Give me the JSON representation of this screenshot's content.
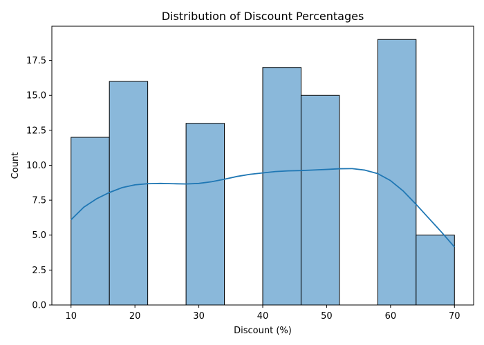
{
  "chart_data": {
    "type": "bar",
    "title": "Distribution of Discount Percentages",
    "xlabel": "Discount (%)",
    "ylabel": "Count",
    "xlim": [
      7.0,
      73.0
    ],
    "ylim": [
      0,
      19.95
    ],
    "xticks": [
      10,
      20,
      30,
      40,
      50,
      60,
      70
    ],
    "yticks": [
      0.0,
      2.5,
      5.0,
      7.5,
      10.0,
      12.5,
      15.0,
      17.5
    ],
    "ytick_labels": [
      "0.0",
      "2.5",
      "5.0",
      "7.5",
      "10.0",
      "12.5",
      "15.0",
      "17.5"
    ],
    "bins": [
      {
        "x0": 10,
        "x1": 16,
        "count": 12
      },
      {
        "x0": 16,
        "x1": 22,
        "count": 16
      },
      {
        "x0": 22,
        "x1": 28,
        "count": 0
      },
      {
        "x0": 28,
        "x1": 34,
        "count": 13
      },
      {
        "x0": 34,
        "x1": 40,
        "count": 0
      },
      {
        "x0": 40,
        "x1": 46,
        "count": 17
      },
      {
        "x0": 46,
        "x1": 52,
        "count": 15
      },
      {
        "x0": 52,
        "x1": 58,
        "count": 0
      },
      {
        "x0": 58,
        "x1": 64,
        "count": 19
      },
      {
        "x0": 64,
        "x1": 70,
        "count": 5
      }
    ],
    "kde": {
      "x": [
        10,
        12,
        14,
        16,
        18,
        20,
        22,
        24,
        26,
        28,
        30,
        32,
        34,
        36,
        38,
        40,
        42,
        44,
        46,
        48,
        50,
        52,
        54,
        56,
        58,
        60,
        62,
        64,
        66,
        68,
        70
      ],
      "y": [
        6.1,
        7.0,
        7.6,
        8.05,
        8.4,
        8.6,
        8.68,
        8.7,
        8.68,
        8.66,
        8.7,
        8.82,
        9.0,
        9.2,
        9.35,
        9.45,
        9.55,
        9.6,
        9.62,
        9.66,
        9.7,
        9.75,
        9.76,
        9.65,
        9.4,
        8.9,
        8.15,
        7.2,
        6.2,
        5.2,
        4.15
      ]
    },
    "grid": false,
    "colors": {
      "bar_fill": "#8ab8da",
      "bar_edge": "#000000",
      "kde_line": "#1f77b4"
    }
  }
}
